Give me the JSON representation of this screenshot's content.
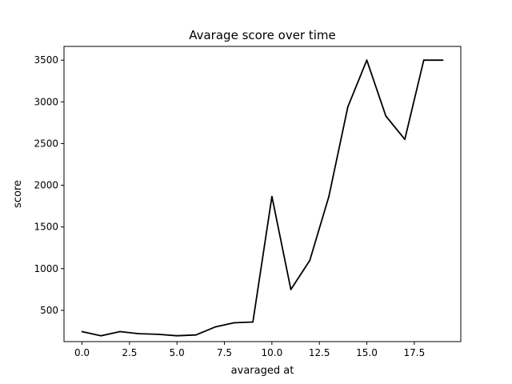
{
  "chart_data": {
    "type": "line",
    "title": "Avarage score over time",
    "xlabel": "avaraged at",
    "ylabel": "score",
    "xlim": [
      -0.95,
      19.95
    ],
    "ylim": [
      125,
      3665
    ],
    "xticks": [
      0.0,
      2.5,
      5.0,
      7.5,
      10.0,
      12.5,
      15.0,
      17.5
    ],
    "xtick_labels": [
      "0.0",
      "2.5",
      "5.0",
      "7.5",
      "10.0",
      "12.5",
      "15.0",
      "17.5"
    ],
    "yticks": [
      500,
      1000,
      1500,
      2000,
      2500,
      3000,
      3500
    ],
    "ytick_labels": [
      "500",
      "1000",
      "1500",
      "2000",
      "2500",
      "3000",
      "3500"
    ],
    "grid": false,
    "legend": false,
    "series": [
      {
        "color": "#000000",
        "x": [
          0,
          1,
          2,
          3,
          4,
          5,
          6,
          7,
          8,
          9,
          10,
          11,
          12,
          13,
          14,
          15,
          16,
          17,
          18,
          19
        ],
        "y": [
          245,
          195,
          245,
          220,
          212,
          195,
          205,
          300,
          350,
          360,
          1865,
          750,
          1100,
          1865,
          2940,
          3500,
          2830,
          2550,
          3500,
          3500
        ]
      }
    ]
  }
}
